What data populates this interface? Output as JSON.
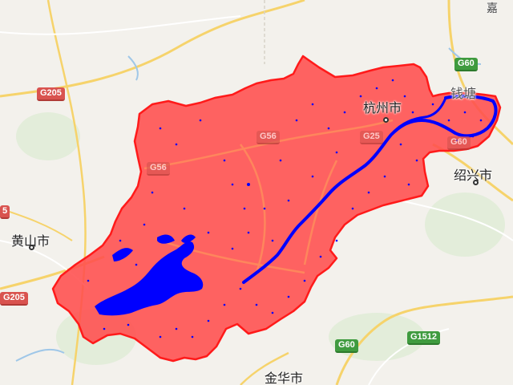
{
  "map": {
    "colors": {
      "background": "#f3f1ec",
      "road_major": "#f6d36b",
      "road_minor": "#ffffff",
      "region_fill": "#ff4d4d",
      "region_stroke": "#ff1a1a",
      "water_overlay": "#0000ff",
      "river": "#0000ff"
    },
    "cities": [
      {
        "id": "hangzhou",
        "label": "杭州市"
      },
      {
        "id": "shaoxing",
        "label": "绍兴市"
      },
      {
        "id": "huangshan",
        "label": "黄山市"
      },
      {
        "id": "jinhua",
        "label": "金华市"
      },
      {
        "id": "qiantang",
        "label": "钱塘"
      }
    ],
    "highway_shields": [
      {
        "id": "g205-left-top",
        "label": "G205",
        "color": "red"
      },
      {
        "id": "g205-left-bottom",
        "label": "G205",
        "color": "red"
      },
      {
        "id": "g56-west",
        "label": "G56",
        "color": "red"
      },
      {
        "id": "g56-center",
        "label": "G56",
        "color": "red"
      },
      {
        "id": "g25",
        "label": "G25",
        "color": "red"
      },
      {
        "id": "g60-top",
        "label": "G60",
        "color": "green"
      },
      {
        "id": "g60-bottom",
        "label": "G60",
        "color": "green"
      },
      {
        "id": "g1512",
        "label": "G1512",
        "color": "green"
      },
      {
        "id": "g60-east",
        "label": "G60",
        "color": "red"
      },
      {
        "id": "edge-5",
        "label": "5",
        "color": "red"
      }
    ],
    "edge_text": "嘉"
  }
}
